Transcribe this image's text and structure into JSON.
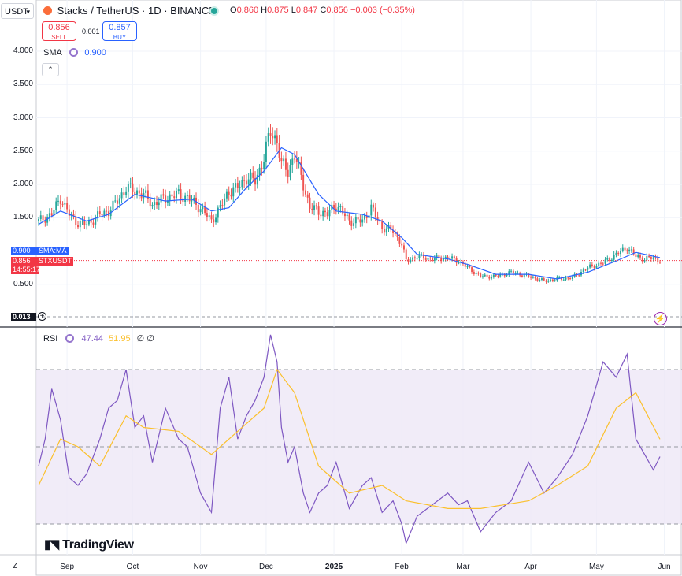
{
  "header": {
    "currency": "USDT",
    "symbol_title": "Stacks / TetherUS · 1D · BINANCE",
    "ohlc": {
      "o_label": "O",
      "o": "0.860",
      "h_label": "H",
      "h": "0.875",
      "l_label": "L",
      "l": "0.847",
      "c_label": "C",
      "c": "0.856",
      "change": "−0.003 (−0.35%)"
    },
    "sell_price": "0.856",
    "sell_label": "SELL",
    "spread": "0.001",
    "buy_price": "0.857",
    "buy_label": "BUY",
    "sma_label": "SMA",
    "sma_value": "0.900",
    "rsi_label": "RSI",
    "rsi_value": "47.44",
    "rsi_ma_value": "51.95",
    "rsi_extra1": "∅",
    "rsi_extra2": "∅",
    "brand": "TradingView",
    "collapse_glyph": "⌃",
    "zoom_glyph": "Z"
  },
  "price_tags": {
    "sma_value": "0.900",
    "sma_label": "SMA:MA",
    "last_price": "0.856",
    "symbol": "STXUSDT",
    "timer": "14:55:17",
    "low_value": "0.013",
    "plus_glyph": "+",
    "bolt_glyph": "⚡"
  },
  "colors": {
    "up": "#26a69a",
    "down": "#ef5350",
    "sma": "#2962ff",
    "rsi": "#7e57c2",
    "rsi_ma": "#fbc02d",
    "band": "#ede7f6"
  },
  "chart_data": [
    {
      "type": "candlestick",
      "title": "Stacks / TetherUS · 1D · BINANCE",
      "y_ticks": [
        "4.000",
        "3.500",
        "3.000",
        "2.500",
        "2.000",
        "1.500",
        "0.500"
      ],
      "ylim": [
        0,
        4.2
      ],
      "x_ticks": [
        "Sep",
        "Oct",
        "Nov",
        "Dec",
        "2025",
        "Feb",
        "Mar",
        "Apr",
        "May",
        "Jun"
      ],
      "x_range": [
        "2024-08-19",
        "2025-05-30"
      ],
      "series": [
        {
          "name": "STXUSDT",
          "kind": "close",
          "points": [
            [
              "2024-08-19",
              1.45
            ],
            [
              "2024-08-25",
              1.55
            ],
            [
              "2024-08-29",
              1.8
            ],
            [
              "2024-09-02",
              1.55
            ],
            [
              "2024-09-06",
              1.42
            ],
            [
              "2024-09-10",
              1.4
            ],
            [
              "2024-09-16",
              1.55
            ],
            [
              "2024-09-20",
              1.6
            ],
            [
              "2024-09-24",
              1.75
            ],
            [
              "2024-09-28",
              1.95
            ],
            [
              "2024-10-02",
              1.9
            ],
            [
              "2024-10-06",
              1.85
            ],
            [
              "2024-10-10",
              1.7
            ],
            [
              "2024-10-16",
              1.8
            ],
            [
              "2024-10-22",
              1.85
            ],
            [
              "2024-10-26",
              1.8
            ],
            [
              "2024-11-01",
              1.65
            ],
            [
              "2024-11-06",
              1.45
            ],
            [
              "2024-11-10",
              1.65
            ],
            [
              "2024-11-14",
              1.9
            ],
            [
              "2024-11-18",
              1.95
            ],
            [
              "2024-11-22",
              2.1
            ],
            [
              "2024-11-26",
              2.05
            ],
            [
              "2024-11-30",
              2.4
            ],
            [
              "2024-12-03",
              2.8
            ],
            [
              "2024-12-06",
              2.65
            ],
            [
              "2024-12-08",
              2.3
            ],
            [
              "2024-12-11",
              2.2
            ],
            [
              "2024-12-14",
              2.45
            ],
            [
              "2024-12-18",
              2.0
            ],
            [
              "2024-12-21",
              1.65
            ],
            [
              "2024-12-25",
              1.6
            ],
            [
              "2024-12-29",
              1.55
            ],
            [
              "2025-01-02",
              1.7
            ],
            [
              "2025-01-08",
              1.45
            ],
            [
              "2025-01-14",
              1.45
            ],
            [
              "2025-01-18",
              1.65
            ],
            [
              "2025-01-23",
              1.35
            ],
            [
              "2025-01-28",
              1.3
            ],
            [
              "2025-02-01",
              1.1
            ],
            [
              "2025-02-03",
              0.85
            ],
            [
              "2025-02-08",
              0.92
            ],
            [
              "2025-02-15",
              0.88
            ],
            [
              "2025-02-22",
              0.9
            ],
            [
              "2025-02-27",
              0.85
            ],
            [
              "2025-03-03",
              0.75
            ],
            [
              "2025-03-09",
              0.62
            ],
            [
              "2025-03-16",
              0.62
            ],
            [
              "2025-03-23",
              0.68
            ],
            [
              "2025-03-31",
              0.62
            ],
            [
              "2025-04-07",
              0.55
            ],
            [
              "2025-04-13",
              0.58
            ],
            [
              "2025-04-20",
              0.6
            ],
            [
              "2025-04-27",
              0.75
            ],
            [
              "2025-05-04",
              0.82
            ],
            [
              "2025-05-10",
              0.95
            ],
            [
              "2025-05-15",
              1.05
            ],
            [
              "2025-05-19",
              0.92
            ],
            [
              "2025-05-23",
              0.88
            ],
            [
              "2025-05-27",
              0.9
            ],
            [
              "2025-05-30",
              0.856
            ]
          ]
        },
        {
          "name": "SMA",
          "kind": "line",
          "points": [
            [
              "2024-08-19",
              1.4
            ],
            [
              "2024-08-29",
              1.6
            ],
            [
              "2024-09-10",
              1.45
            ],
            [
              "2024-09-20",
              1.55
            ],
            [
              "2024-10-02",
              1.85
            ],
            [
              "2024-10-16",
              1.75
            ],
            [
              "2024-10-28",
              1.78
            ],
            [
              "2024-11-06",
              1.6
            ],
            [
              "2024-11-14",
              1.65
            ],
            [
              "2024-11-22",
              1.95
            ],
            [
              "2024-11-30",
              2.2
            ],
            [
              "2024-12-08",
              2.55
            ],
            [
              "2024-12-14",
              2.45
            ],
            [
              "2024-12-25",
              1.85
            ],
            [
              "2025-01-02",
              1.6
            ],
            [
              "2025-01-14",
              1.55
            ],
            [
              "2025-01-23",
              1.45
            ],
            [
              "2025-02-01",
              1.2
            ],
            [
              "2025-02-08",
              0.95
            ],
            [
              "2025-02-22",
              0.88
            ],
            [
              "2025-03-03",
              0.8
            ],
            [
              "2025-03-16",
              0.65
            ],
            [
              "2025-03-31",
              0.65
            ],
            [
              "2025-04-13",
              0.58
            ],
            [
              "2025-04-27",
              0.68
            ],
            [
              "2025-05-10",
              0.85
            ],
            [
              "2025-05-19",
              0.98
            ],
            [
              "2025-05-30",
              0.9
            ]
          ]
        }
      ],
      "last_price": 0.856,
      "sma_last": 0.9
    },
    {
      "type": "line",
      "title": "RSI",
      "ylim": [
        15,
        90
      ],
      "bands": {
        "upper": 70,
        "middle": 50,
        "lower": 30
      },
      "x_range": [
        "2024-08-19",
        "2025-05-30"
      ],
      "series": [
        {
          "name": "RSI",
          "points": [
            [
              "2024-08-19",
              45
            ],
            [
              "2024-08-22",
              52
            ],
            [
              "2024-08-25",
              65
            ],
            [
              "2024-08-29",
              57
            ],
            [
              "2024-09-02",
              42
            ],
            [
              "2024-09-06",
              40
            ],
            [
              "2024-09-10",
              43
            ],
            [
              "2024-09-16",
              52
            ],
            [
              "2024-09-20",
              60
            ],
            [
              "2024-09-24",
              62
            ],
            [
              "2024-09-28",
              70
            ],
            [
              "2024-10-02",
              55
            ],
            [
              "2024-10-06",
              58
            ],
            [
              "2024-10-10",
              46
            ],
            [
              "2024-10-16",
              60
            ],
            [
              "2024-10-22",
              52
            ],
            [
              "2024-10-26",
              50
            ],
            [
              "2024-11-01",
              38
            ],
            [
              "2024-11-06",
              33
            ],
            [
              "2024-11-10",
              60
            ],
            [
              "2024-11-14",
              68
            ],
            [
              "2024-11-18",
              52
            ],
            [
              "2024-11-22",
              58
            ],
            [
              "2024-11-26",
              62
            ],
            [
              "2024-11-30",
              68
            ],
            [
              "2024-12-03",
              79
            ],
            [
              "2024-12-06",
              72
            ],
            [
              "2024-12-08",
              55
            ],
            [
              "2024-12-11",
              46
            ],
            [
              "2024-12-14",
              50
            ],
            [
              "2024-12-18",
              38
            ],
            [
              "2024-12-21",
              33
            ],
            [
              "2024-12-25",
              38
            ],
            [
              "2024-12-29",
              40
            ],
            [
              "2025-01-02",
              46
            ],
            [
              "2025-01-08",
              34
            ],
            [
              "2025-01-14",
              40
            ],
            [
              "2025-01-18",
              42
            ],
            [
              "2025-01-23",
              33
            ],
            [
              "2025-01-28",
              36
            ],
            [
              "2025-02-01",
              30
            ],
            [
              "2025-02-03",
              25
            ],
            [
              "2025-02-08",
              32
            ],
            [
              "2025-02-15",
              35
            ],
            [
              "2025-02-22",
              38
            ],
            [
              "2025-02-27",
              35
            ],
            [
              "2025-03-03",
              36
            ],
            [
              "2025-03-09",
              28
            ],
            [
              "2025-03-16",
              33
            ],
            [
              "2025-03-23",
              36
            ],
            [
              "2025-03-31",
              46
            ],
            [
              "2025-04-07",
              38
            ],
            [
              "2025-04-13",
              42
            ],
            [
              "2025-04-20",
              48
            ],
            [
              "2025-04-27",
              58
            ],
            [
              "2025-05-04",
              72
            ],
            [
              "2025-05-10",
              68
            ],
            [
              "2025-05-15",
              74
            ],
            [
              "2025-05-19",
              52
            ],
            [
              "2025-05-23",
              48
            ],
            [
              "2025-05-27",
              44
            ],
            [
              "2025-05-30",
              47.44
            ]
          ]
        },
        {
          "name": "RSI-based MA",
          "points": [
            [
              "2024-08-19",
              40
            ],
            [
              "2024-08-29",
              52
            ],
            [
              "2024-09-06",
              50
            ],
            [
              "2024-09-16",
              45
            ],
            [
              "2024-09-28",
              58
            ],
            [
              "2024-10-06",
              55
            ],
            [
              "2024-10-22",
              54
            ],
            [
              "2024-11-06",
              48
            ],
            [
              "2024-11-18",
              54
            ],
            [
              "2024-11-30",
              60
            ],
            [
              "2024-12-06",
              70
            ],
            [
              "2024-12-14",
              64
            ],
            [
              "2024-12-25",
              45
            ],
            [
              "2025-01-08",
              38
            ],
            [
              "2025-01-23",
              40
            ],
            [
              "2025-02-03",
              36
            ],
            [
              "2025-02-22",
              34
            ],
            [
              "2025-03-09",
              34
            ],
            [
              "2025-03-31",
              36
            ],
            [
              "2025-04-13",
              40
            ],
            [
              "2025-04-27",
              45
            ],
            [
              "2025-05-10",
              60
            ],
            [
              "2025-05-19",
              64
            ],
            [
              "2025-05-30",
              51.95
            ]
          ]
        }
      ]
    }
  ]
}
